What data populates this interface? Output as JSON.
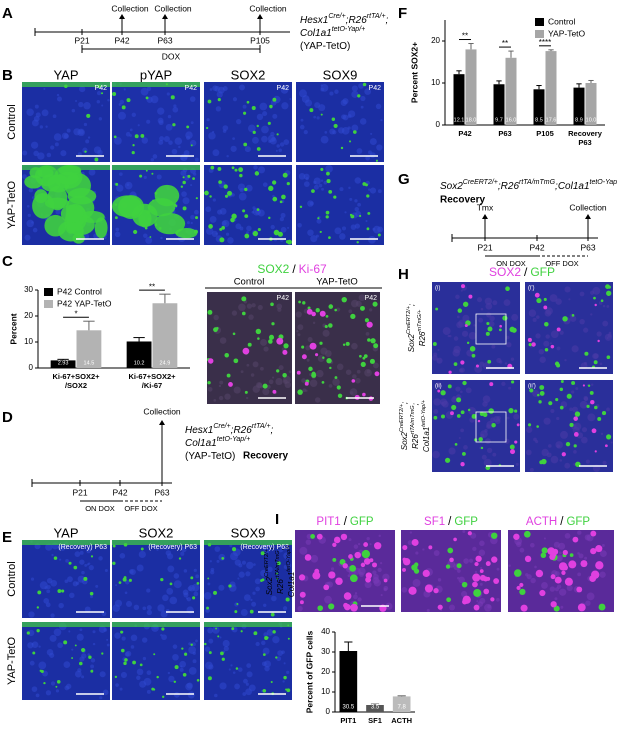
{
  "panel_labels": [
    "A",
    "B",
    "C",
    "D",
    "E",
    "F",
    "G",
    "H",
    "I"
  ],
  "panel_a": {
    "genotype": [
      [
        "Hesx1",
        "Cre/+",
        ";R26",
        "rtTA/+",
        ";"
      ],
      [
        "Col1a1",
        "tetO-Yap/+"
      ],
      [
        "(YAP-TetO)"
      ]
    ],
    "events": [
      "Collection",
      "Collection",
      "Collection"
    ],
    "ticks": [
      "P21",
      "P42",
      "P63",
      "P105"
    ],
    "treatment": "DOX"
  },
  "panel_b": {
    "columns": [
      "YAP",
      "pYAP",
      "SOX2",
      "SOX9"
    ],
    "rows": [
      "Control",
      "YAP-TetO"
    ],
    "tag": "P42"
  },
  "panel_c": {
    "stain": [
      "SOX2",
      "/",
      "Ki-67"
    ],
    "columns": [
      "Control",
      "YAP-TetO"
    ],
    "tag": "P42"
  },
  "panel_d": {
    "genotype": [
      [
        "Hesx1",
        "Cre/+",
        ";R26",
        "rtTA/+",
        ";"
      ],
      [
        "Col1a1",
        "tetO-Yap/+"
      ],
      [
        "(YAP-TetO)"
      ]
    ],
    "recovery": "Recovery",
    "event": "Collection",
    "ticks": [
      "P21",
      "P42",
      "P63"
    ],
    "on": "ON DOX",
    "off": "OFF DOX"
  },
  "panel_e": {
    "columns": [
      "YAP",
      "SOX2",
      "SOX9"
    ],
    "rows": [
      "Control",
      "YAP-TetO"
    ],
    "tag": "(Recovery) P63"
  },
  "panel_g": {
    "genotype": [
      [
        "Sox2",
        "CreERT2/+",
        ";R26",
        "rtTA/mTmG",
        ";Col1a1",
        "tetO-Yap/+"
      ]
    ],
    "recovery": "Recovery",
    "start": "Tmx",
    "event": "Collection",
    "ticks": [
      "P21",
      "P42",
      "P63"
    ],
    "on": "ON DOX",
    "off": "OFF DOX"
  },
  "panel_h": {
    "stain": [
      "SOX2",
      "/",
      "GFP"
    ],
    "genotypes": [
      [
        [
          "Sox2",
          "CreERT2/+",
          ";"
        ],
        [
          "R26",
          "mTmG/+"
        ]
      ],
      [
        [
          "Sox2",
          "CreERT2/+",
          ";"
        ],
        [
          "R26",
          "rtTA/mTmG",
          ";"
        ],
        [
          "Col1a1",
          "tetO-Yap/+"
        ]
      ]
    ],
    "insets": [
      [
        "(i)",
        "(i')"
      ],
      [
        "(ii)",
        "(ii')"
      ]
    ]
  },
  "panel_i": {
    "stains": [
      [
        "PIT1",
        "/",
        "GFP"
      ],
      [
        "SF1",
        "/",
        "GFP"
      ],
      [
        "ACTH",
        "/",
        "GFP"
      ]
    ],
    "genotype": [
      [
        "Sox2",
        "CreERT2/+",
        ";"
      ],
      [
        "R26",
        "rtTA/mTmG",
        ";"
      ],
      [
        "Col1a1",
        "tetO-Yap/+"
      ]
    ]
  },
  "chart_data": [
    {
      "type": "bar",
      "y_label": "Percent",
      "categories": [
        [
          "Ki-67+SOX2+",
          "/SOX2"
        ],
        [
          "Ki-67+SOX2+",
          "/Ki-67"
        ]
      ],
      "series": [
        {
          "name": "P42 Control",
          "color": "#000000",
          "values": [
            2.93,
            10.2
          ],
          "value_labels": [
            "2.93",
            "10.2"
          ],
          "errors": [
            0.4,
            1.5
          ]
        },
        {
          "name": "P42 YAP-TetO",
          "color": "#b3b3b3",
          "values": [
            14.5,
            24.9
          ],
          "value_labels": [
            "14.5",
            "24.9"
          ],
          "errors": [
            3.5,
            3.5
          ]
        }
      ],
      "annotations": [
        "*",
        "**"
      ],
      "ylim": [
        0,
        30
      ],
      "yticks": [
        0,
        10,
        20,
        30
      ],
      "legend": "top-left"
    },
    {
      "type": "bar",
      "y_label": "Percent SOX2+",
      "categories": [
        [
          "P42"
        ],
        [
          "P63"
        ],
        [
          "P105"
        ],
        [
          "Recovery",
          "P63"
        ]
      ],
      "series": [
        {
          "name": "Control",
          "color": "#000000",
          "values": [
            12.1,
            9.7,
            8.5,
            8.9
          ],
          "value_labels": [
            "12.1",
            "9.7",
            "8.5",
            "8.9"
          ],
          "errors": [
            0.8,
            0.8,
            0.9,
            0.9
          ]
        },
        {
          "name": "YAP-TetO",
          "color": "#a6a6a6",
          "values": [
            18.0,
            16.0,
            17.6,
            10.0
          ],
          "value_labels": [
            "18.0",
            "16.0",
            "17.6",
            "10.0"
          ],
          "errors": [
            1.4,
            1.6,
            0.3,
            0.6
          ]
        }
      ],
      "annotations": [
        "**",
        "**",
        "****",
        null
      ],
      "ylim": [
        0,
        25
      ],
      "yticks": [
        0,
        10,
        20
      ],
      "legend": "top-right"
    },
    {
      "type": "bar",
      "y_label": "Percent of GFP cells",
      "categories": [
        [
          "PIT1"
        ],
        [
          "SF1"
        ],
        [
          "ACTH"
        ]
      ],
      "values": [
        30.5,
        3.5,
        7.8
      ],
      "value_labels": [
        "30.5",
        "3.5",
        "7.8"
      ],
      "errors": [
        4.5,
        0.5,
        0.3
      ],
      "colors": [
        "#000000",
        "#555555",
        "#bbbbbb"
      ],
      "ylim": [
        0,
        40
      ],
      "yticks": [
        0,
        10,
        20,
        30,
        40
      ]
    }
  ]
}
